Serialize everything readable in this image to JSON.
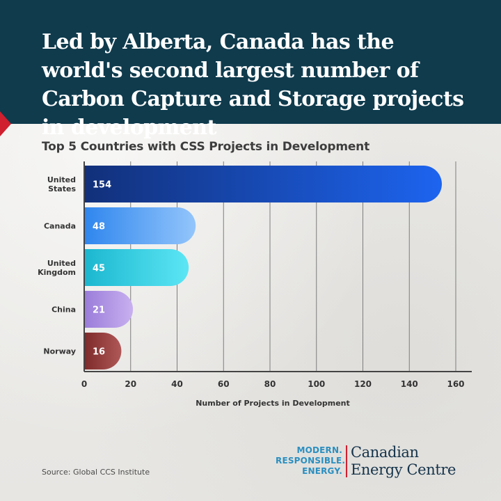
{
  "header": {
    "title": "Led by Alberta, Canada has the world's second largest number of Carbon Capture and Storage projects in development"
  },
  "chart_data": {
    "type": "bar",
    "orientation": "horizontal",
    "title": "Top 5 Countries with CSS Projects in Development",
    "xlabel": "Number of Projects in Development",
    "ylabel": "",
    "categories": [
      [
        "United",
        "States"
      ],
      [
        "Canada"
      ],
      [
        "United",
        "Kingdom"
      ],
      [
        "China"
      ],
      [
        "Norway"
      ]
    ],
    "values": [
      154,
      48,
      45,
      21,
      16
    ],
    "xlim": [
      0,
      160
    ],
    "xticks": [
      0,
      20,
      40,
      60,
      80,
      100,
      120,
      140,
      160
    ],
    "grid": true,
    "legend": "none",
    "bar_colors": [
      [
        "#12307a",
        "#1d64ef"
      ],
      [
        "#2f86ee",
        "#93c5fb"
      ],
      [
        "#1bb7cf",
        "#5ce6f5"
      ],
      [
        "#9a7cd9",
        "#c8b0f0"
      ],
      [
        "#7e2a2a",
        "#b05858"
      ]
    ]
  },
  "footer": {
    "source": "Source: Global CCS Institute",
    "tagline": [
      "MODERN.",
      "RESPONSIBLE.",
      "ENERGY."
    ],
    "org_name": [
      "Canadian",
      "Energy Centre"
    ]
  },
  "colors": {
    "header_bg": "#0f3b4d",
    "accent_red": "#d01f2e",
    "tagline_blue": "#2a8fc0",
    "org_navy": "#14334a"
  }
}
